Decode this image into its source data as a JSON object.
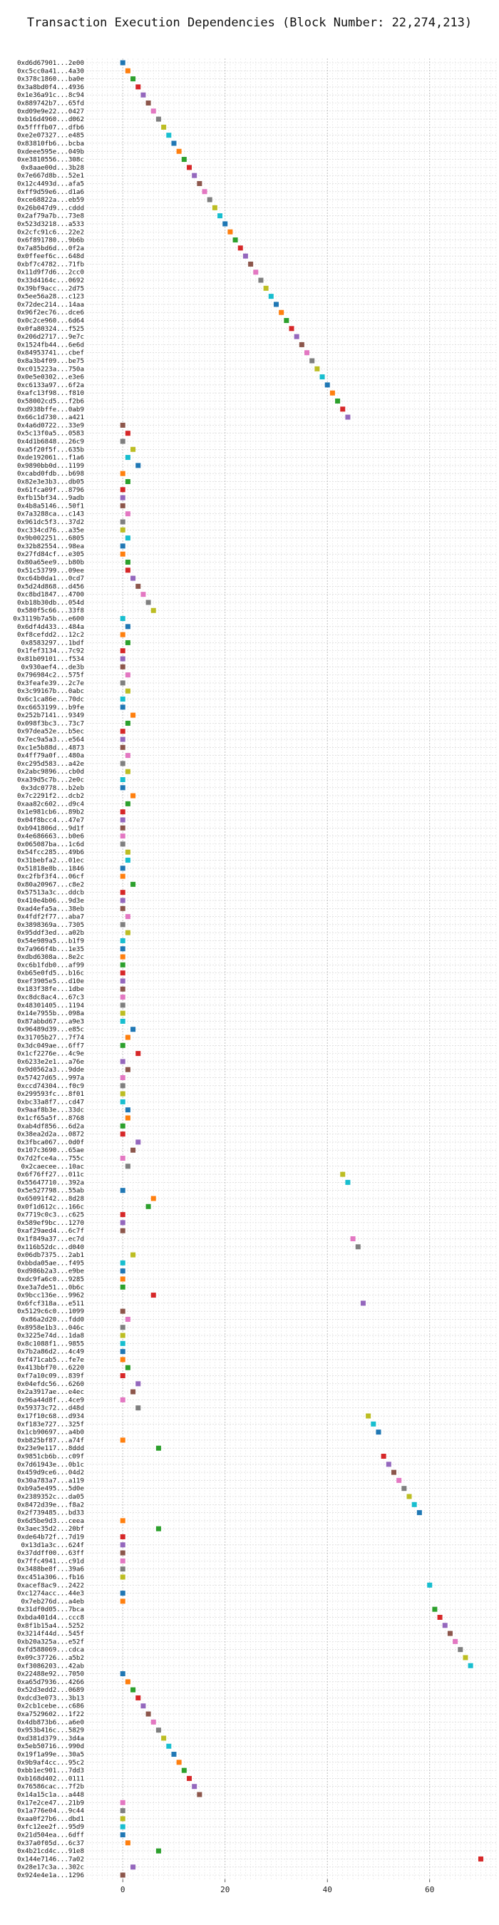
{
  "chart_data": {
    "type": "scatter",
    "title": "Transaction Execution Dependencies (Block Number: 22,274,213)",
    "xlabel": "",
    "ylabel": "",
    "xlim": [
      -7,
      73
    ],
    "xticks": [
      0,
      20,
      40,
      60
    ],
    "grid": {
      "x": true,
      "y": true,
      "style": "dashed"
    },
    "legend": "none",
    "palette": [
      "#1f77b4",
      "#ff7f0e",
      "#2ca02c",
      "#d62728",
      "#9467bd",
      "#8c564b",
      "#e377c2",
      "#7f7f7f",
      "#bcbd22",
      "#17becf"
    ],
    "transactions": [
      "0xd6d67901...2e00",
      "0xc5cc0a41...4a30",
      "0x378c1860...ba0e",
      "0x3a8bd0f4...4936",
      "0x1e36a91c...8c94",
      "0x889742b7...65fd",
      "0xd09e9e22...0427",
      "0xb16d4960...d062",
      "0x5ffffb07...dfb6",
      "0xe2e07327...e485",
      "0x83810fb6...bcba",
      "0xdeee595e...049b",
      "0xe3810556...308c",
      "0x8aae00d...3b28",
      "0x7e667d8b...52e1",
      "0x12c4493d...afa5",
      "0xff9d59e6...d1a6",
      "0xce68822a...eb59",
      "0x26b047d9...cddd",
      "0x2af79a7b...73e8",
      "0x523d3218...a533",
      "0x2cfc91c6...22e2",
      "0x6f891780...9b6b",
      "0x7a85bd6d...0f2a",
      "0x0ffeef6c...648d",
      "0xbf7c4782...71fb",
      "0x11d9f7d6...2cc0",
      "0x33d4164c...0692",
      "0x39bf9acc...2d75",
      "0x5ee56a28...c123",
      "0x72dec214...14aa",
      "0x96f2ec76...dce6",
      "0x0c2ce960...6d64",
      "0x0fa80324...f525",
      "0x206d2717...9e7c",
      "0x1524fb44...6e6d",
      "0x84953741...cbef",
      "0x8a3b4f09...be75",
      "0xc015223a...750a",
      "0x0e5e0302...e3e6",
      "0xc6133a97...6f2a",
      "0xafc13f98...f810",
      "0x58002cd5...f2b6",
      "0xd938bffe...0ab9",
      "0x66c1d730...a421",
      "0x4a6d0722...33e9",
      "0x5c13f0a5...0583",
      "0x4d1b6848...26c9",
      "0xa5f20f5f...635b",
      "0xde192061...f1a6",
      "0x9890bb0d...1199",
      "0xcabd0fdb...b698",
      "0x82e3e3b3...db05",
      "0x61fca09f...8796",
      "0xfb15bf34...9adb",
      "0x4b8a5146...50f1",
      "0x7a3288ca...c143",
      "0x961dc5f3...37d2",
      "0xc334cd76...a35e",
      "0x9b002251...6805",
      "0x32b82554...98ea",
      "0x27fd84cf...e305",
      "0x80a65ee9...b80b",
      "0x51c53799...09ee",
      "0xc64b0da1...0cd7",
      "0x5d24d868...d456",
      "0xc8bd1847...4700",
      "0xb18b30db...054d",
      "0x580f5c66...33f8",
      "0x3119b7a5b...e600",
      "0x6df4d433...484a",
      "0xf8cefdd2...12c2",
      "0x8583297...1bdf",
      "0x1fef3134...7c92",
      "0x81b09101...f534",
      "0x930aef4...de3b",
      "0x796984c2...575f",
      "0x3feafe39...2c7e",
      "0x3c99167b...0abc",
      "0x6c1ca86e...70dc",
      "0xc6653199...b9fe",
      "0x252b7141...9349",
      "0x098f3bc3...73c7",
      "0x97dea52e...b5ec",
      "0x7ec9a5a3...e564",
      "0xc1e5b88d...4873",
      "0x4ff79a0f...480a",
      "0xc295d583...a42e",
      "0x2abc9896...cb0d",
      "0xa39d5c7b...2e0c",
      "0x3dc0778...b2eb",
      "0x7c2291f2...dcb2",
      "0xaa82c602...d9c4",
      "0x1e981cb6...89b2",
      "0x04f8bcc4...47e7",
      "0xb941806d...9d1f",
      "0x4e686663...b0e6",
      "0x065087ba...1c6d",
      "0x54fcc285...49b6",
      "0x31bebfa2...01ec",
      "0x51818e8b...1846",
      "0xc2fbf3f4...06cf",
      "0x80a20967...c8e2",
      "0x57513a3c...ddcb",
      "0x410e4b06...9d3e",
      "0xad4efa5a...38eb",
      "0x4fdf2f77...aba7",
      "0x3898369a...7305",
      "0x95ddf3ed...a02b",
      "0x54e989a5...b1f9",
      "0x7a966f4b...1e35",
      "0xdbd6308a...8e2c",
      "0xc6b1fdb0...af99",
      "0xb65e0fd5...b16c",
      "0xef3905e5...d10e",
      "0x183f38fe...1dbe",
      "0xc8dc8ac4...67c3",
      "0x48301405...1194",
      "0x14e7955b...098a",
      "0x87abbd67...a9e3",
      "0x96489d39...e85c",
      "0x31705b27...7f74",
      "0x3dc049ae...6ff7",
      "0x1cf2276e...4c9e",
      "0x6233e2e1...a76e",
      "0x9d0562a3...9dde",
      "0x57427d65...997a",
      "0xccd74304...f0c9",
      "0x299593fc...8f01",
      "0xbc33a8f7...cd47",
      "0x9aaf8b3e...33dc",
      "0x1cf65a5f...8768",
      "0xab4df856...6d2a",
      "0x38ea2d2a...0872",
      "0x3fbca067...0d0f",
      "0x107c3690...65ae",
      "0x7d2fce4a...755c",
      "0x2caecee...10ac",
      "0x6f76ff27...011c",
      "0x55647710...392a",
      "0x5e527798...55ab",
      "0x65091f42...8d28",
      "0x0f1d612c...166c",
      "0x7719c0c3...c625",
      "0x589ef9bc...1270",
      "0xaf29aed4...6c7f",
      "0x1f849a37...ec7d",
      "0x116b52dc...d040",
      "0x06db7375...2ab1",
      "0xbbda05ae...f495",
      "0xd986b2a3...e9be",
      "0xdc9fa6c0...9285",
      "0xe3a7de51...0b6c",
      "0x9bcc136e...9962",
      "0x6fcf318a...e511",
      "0x5129c6c0...1099",
      "0x86a2d20...fdd0",
      "0x8958e1b3...046c",
      "0x3225e74d...1da8",
      "0x8c1088f1...9855",
      "0x7b2a86d2...4c49",
      "0xf471cab5...fe7e",
      "0x413bbf70...6220",
      "0xf7a10c09...839f",
      "0x04efdc56...6260",
      "0x2a3917ae...e4ec",
      "0x96a44d8f...4ce9",
      "0x59373c72...d48d",
      "0x17f10c68...d934",
      "0xf183e727...325f",
      "0x1cb90697...a4b0",
      "0xb825bf87...a74f",
      "0x23e9e117...8ddd",
      "0x9851cb6b...c09f",
      "0x7d61943e...0b1c",
      "0x459d9ce6...04d2",
      "0x30a783a7...a119",
      "0xb9a5e495...5d0e",
      "0x2389352c...da05",
      "0x8472d39e...f8a2",
      "0x2f739485...bd33",
      "0x6d5be9d3...ceea",
      "0x3aec35d2...20bf",
      "0xde64b72f...7d19",
      "0x13d1a3c...624f",
      "0x37ddff00...63ff",
      "0x7ffc4941...c91d",
      "0x3488be8f...39a6",
      "0xc451a306...fb16",
      "0xacef8ac9...2422",
      "0xc1274acc...44e3",
      "0x7eb276d...a4eb",
      "0x31df0d05...7bca",
      "0xbda401d4...ccc8",
      "0x8f1b15a4...5252",
      "0x3214f44d...545f",
      "0xb20a325a...e52f",
      "0xfd588069...cdca",
      "0x09c37726...a5b2",
      "0xf3086203...42ab",
      "0x22488e92...7050",
      "0xa65d7936...4266",
      "0x52d3edd2...0689",
      "0xdcd3e073...3b13",
      "0x2cb1cebe...c686",
      "0xa7529602...1f22",
      "0x4db873b6...a6e0",
      "0x953b416c...5829",
      "0xd381d379...3d4a",
      "0x5eb50716...990d",
      "0x19f1a99e...30a5",
      "0x9b9af4cc...95c2",
      "0xbb1ec901...7dd3",
      "0xb168d402...0111",
      "0x76586cac...7f2b",
      "0x14a15c1a...a448",
      "0x17e2ce47...21b9",
      "0x1a776e04...9c44",
      "0xaa0f27b6...dbd1",
      "0xfc12ee2f...95d9",
      "0x21d504ea...6dff",
      "0x37a0f05d...6c37",
      "0x4b21cd4c...91e8",
      "0x144e7146...7a02",
      "0x28e17c3a...302c",
      "0x924e4e1a...1296"
    ],
    "x": [
      0,
      1,
      2,
      3,
      4,
      5,
      6,
      7,
      8,
      9,
      10,
      11,
      12,
      13,
      14,
      15,
      16,
      17,
      18,
      19,
      20,
      21,
      22,
      23,
      24,
      25,
      26,
      27,
      28,
      29,
      30,
      31,
      32,
      33,
      34,
      35,
      36,
      37,
      38,
      39,
      40,
      41,
      42,
      43,
      44,
      0,
      1,
      0,
      2,
      1,
      3,
      0,
      1,
      0,
      0,
      0,
      1,
      0,
      0,
      1,
      0,
      0,
      1,
      1,
      2,
      3,
      4,
      5,
      6,
      0,
      1,
      0,
      1,
      0,
      0,
      0,
      1,
      0,
      1,
      0,
      0,
      2,
      1,
      0,
      0,
      0,
      1,
      0,
      1,
      0,
      0,
      2,
      1,
      0,
      0,
      0,
      0,
      0,
      1,
      1,
      0,
      0,
      2,
      0,
      0,
      0,
      1,
      0,
      1,
      0,
      0,
      0,
      0,
      0,
      0,
      0,
      0,
      0,
      0,
      0,
      2,
      1,
      0,
      3,
      0,
      1,
      0,
      0,
      0,
      0,
      1,
      1,
      0,
      0,
      3,
      2,
      0,
      1,
      43,
      44,
      0,
      6,
      5,
      0,
      0,
      0,
      45,
      46,
      2,
      0,
      0,
      0,
      0,
      6,
      47,
      0,
      1,
      0,
      0,
      0,
      0,
      0,
      1,
      0,
      3,
      2,
      0,
      3,
      48,
      49,
      50,
      0,
      7,
      51,
      52,
      53,
      54,
      55,
      56,
      57,
      58,
      0,
      7,
      0,
      0,
      0,
      0,
      0,
      0,
      60,
      0,
      0,
      61,
      62,
      63,
      64,
      65,
      66,
      67,
      68,
      0,
      1,
      2,
      3,
      4,
      5,
      6,
      7,
      8,
      9,
      10,
      11,
      12,
      13,
      14,
      15,
      0,
      0,
      0,
      0,
      0,
      1,
      7,
      70,
      2,
      0,
      0,
      0
    ],
    "color_index": [
      0,
      1,
      2,
      3,
      4,
      5,
      6,
      7,
      8,
      9,
      0,
      1,
      2,
      3,
      4,
      5,
      6,
      7,
      8,
      9,
      0,
      1,
      2,
      3,
      4,
      5,
      6,
      7,
      8,
      9,
      0,
      1,
      2,
      3,
      4,
      5,
      6,
      7,
      8,
      9,
      0,
      1,
      2,
      3,
      4,
      5,
      3,
      7,
      8,
      9,
      0,
      1,
      2,
      3,
      4,
      5,
      6,
      7,
      8,
      9,
      0,
      1,
      2,
      3,
      4,
      5,
      6,
      7,
      8,
      9,
      0,
      1,
      2,
      3,
      4,
      5,
      6,
      7,
      8,
      9,
      0,
      1,
      2,
      3,
      4,
      5,
      6,
      7,
      8,
      9,
      0,
      1,
      2,
      3,
      4,
      5,
      6,
      7,
      8,
      9,
      0,
      1,
      2,
      3,
      4,
      5,
      6,
      7,
      8,
      9,
      0,
      1,
      2,
      3,
      4,
      5,
      6,
      7,
      8,
      9,
      0,
      1,
      2,
      3,
      4,
      5,
      6,
      7,
      8,
      9,
      0,
      1,
      2,
      3,
      4,
      5,
      6,
      7,
      8,
      9,
      0,
      1,
      2,
      3,
      4,
      5,
      6,
      7,
      8,
      9,
      0,
      1,
      2,
      3,
      4,
      5,
      6,
      7,
      8,
      9,
      0,
      1,
      2,
      3,
      4,
      5,
      6,
      7,
      8,
      9,
      0,
      1,
      2,
      3,
      4,
      5,
      6,
      7,
      8,
      9,
      0,
      1,
      2,
      3,
      4,
      5,
      6,
      7,
      8,
      9,
      0,
      1,
      2,
      3,
      4,
      5,
      6,
      7,
      8,
      9,
      0,
      1,
      2,
      3,
      4,
      5,
      6,
      7,
      8,
      9,
      0,
      1,
      2,
      3,
      4,
      5,
      6,
      7,
      8,
      9,
      0,
      1,
      2,
      3,
      4,
      5,
      6,
      7,
      8,
      9,
      0,
      1,
      2,
      3,
      4,
      5,
      6,
      7,
      8,
      9,
      0,
      1,
      2
    ]
  }
}
